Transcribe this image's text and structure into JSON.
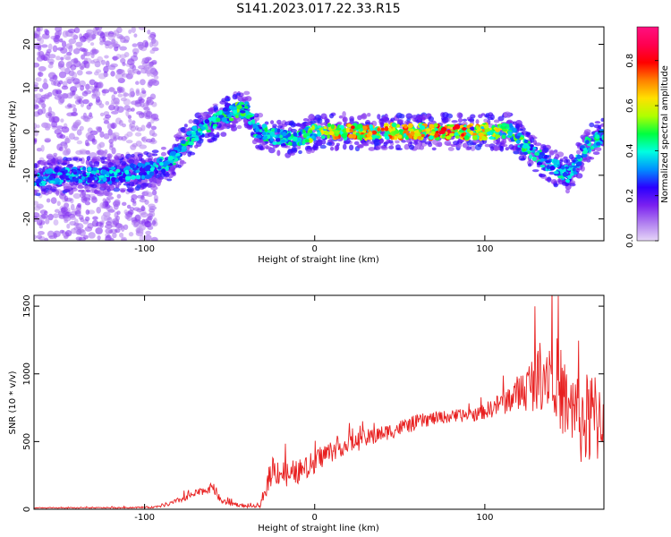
{
  "title": "S141.2023.017.22.33.R15",
  "colors": {
    "snr_line": "#e82020",
    "spectrum_ramp": [
      "#e6d6f7",
      "#b07ef0",
      "#7a20f0",
      "#2a00ff",
      "#0090ff",
      "#00ffe0",
      "#00ff40",
      "#b0ff00",
      "#ffe000",
      "#ff8000",
      "#ff0000",
      "#ff0050",
      "#ff1080"
    ]
  },
  "chart_data": [
    {
      "type": "heatmap",
      "xlabel": "Height of straight line (km)",
      "ylabel": "Frequency (Hz)",
      "xlim": [
        -165,
        170
      ],
      "ylim": [
        -25,
        24
      ],
      "x_ticks": [
        -100,
        0,
        100
      ],
      "y_ticks": [
        -20,
        -10,
        0,
        10,
        20
      ],
      "grid": false,
      "colorbar": {
        "label": "Normalized spectral amplitude",
        "range": [
          0,
          0.95
        ],
        "ticks": [
          0.0,
          0.2,
          0.4,
          0.6,
          0.8
        ]
      },
      "ridge_points": [
        {
          "x": -160,
          "y": -10.5,
          "amp": 0.35
        },
        {
          "x": -140,
          "y": -10,
          "amp": 0.4
        },
        {
          "x": -120,
          "y": -10,
          "amp": 0.38
        },
        {
          "x": -100,
          "y": -9,
          "amp": 0.36
        },
        {
          "x": -85,
          "y": -7,
          "amp": 0.42
        },
        {
          "x": -75,
          "y": -2,
          "amp": 0.45
        },
        {
          "x": -65,
          "y": 1,
          "amp": 0.42
        },
        {
          "x": -55,
          "y": 3,
          "amp": 0.45
        },
        {
          "x": -45,
          "y": 5,
          "amp": 0.5
        },
        {
          "x": -40,
          "y": 5,
          "amp": 0.45
        },
        {
          "x": -35,
          "y": 0.5,
          "amp": 0.42
        },
        {
          "x": -25,
          "y": -1,
          "amp": 0.45
        },
        {
          "x": -10,
          "y": -2,
          "amp": 0.45
        },
        {
          "x": 0,
          "y": 0,
          "amp": 0.55
        },
        {
          "x": 20,
          "y": 0,
          "amp": 0.75
        },
        {
          "x": 50,
          "y": 0,
          "amp": 0.7
        },
        {
          "x": 80,
          "y": 0,
          "amp": 0.8
        },
        {
          "x": 100,
          "y": 0,
          "amp": 0.65
        },
        {
          "x": 115,
          "y": 0,
          "amp": 0.55
        },
        {
          "x": 125,
          "y": -4,
          "amp": 0.45
        },
        {
          "x": 140,
          "y": -8,
          "amp": 0.42
        },
        {
          "x": 150,
          "y": -10,
          "amp": 0.38
        },
        {
          "x": 160,
          "y": -3,
          "amp": 0.42
        },
        {
          "x": 170,
          "y": -1,
          "amp": 0.45
        }
      ]
    },
    {
      "type": "line",
      "xlabel": "Height of straight line (km)",
      "ylabel": "SNR (10 * v/v)",
      "xlim": [
        -165,
        170
      ],
      "ylim": [
        0,
        1580
      ],
      "x_ticks": [
        -100,
        0,
        100
      ],
      "y_ticks": [
        0,
        500,
        1000,
        1500
      ],
      "grid": false,
      "series": [
        {
          "x": [
            -165,
            -140,
            -110,
            -95,
            -85,
            -75,
            -65,
            -60,
            -55,
            -40,
            -32,
            -25,
            -15,
            -5,
            5,
            15,
            25,
            40,
            55,
            65,
            75,
            85,
            95,
            105,
            115,
            125,
            133,
            140,
            150,
            160,
            170
          ],
          "y": [
            10,
            10,
            12,
            15,
            40,
            90,
            140,
            160,
            60,
            20,
            25,
            300,
            250,
            300,
            400,
            460,
            500,
            560,
            620,
            660,
            680,
            690,
            700,
            750,
            820,
            900,
            1000,
            1050,
            700,
            650,
            700
          ],
          "spread": [
            5,
            6,
            8,
            10,
            30,
            40,
            50,
            60,
            40,
            15,
            20,
            200,
            150,
            150,
            150,
            120,
            120,
            100,
            100,
            90,
            80,
            80,
            80,
            120,
            180,
            300,
            450,
            500,
            550,
            600,
            600
          ]
        }
      ]
    }
  ]
}
